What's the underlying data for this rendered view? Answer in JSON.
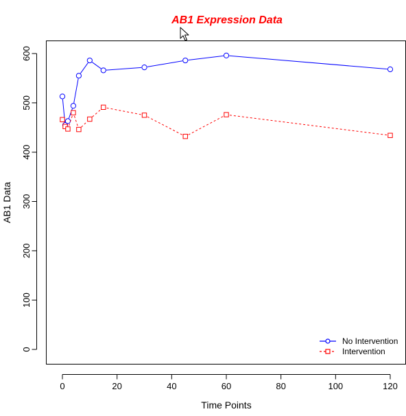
{
  "chart_data": {
    "type": "line",
    "title": "AB1 Expression Data",
    "title_color": "#ff0000",
    "xlabel": "Time Points",
    "ylabel": "AB1 Data",
    "xlim": [
      0,
      120
    ],
    "ylim": [
      0,
      600
    ],
    "x_ticks": [
      0,
      20,
      40,
      60,
      80,
      100,
      120
    ],
    "y_ticks": [
      0,
      100,
      200,
      300,
      400,
      500,
      600
    ],
    "grid": false,
    "legend_position": "bottom-right",
    "series": [
      {
        "name": "No Intervention",
        "color": "#0000ff",
        "line_style": "solid",
        "marker": "circle",
        "x": [
          0,
          1,
          2,
          4,
          6,
          10,
          15,
          30,
          45,
          60,
          120
        ],
        "y": [
          513,
          455,
          463,
          494,
          555,
          586,
          566,
          572,
          586,
          596,
          568
        ]
      },
      {
        "name": "Intervention",
        "color": "#ff0000",
        "line_style": "dashed",
        "marker": "square",
        "x": [
          0,
          1,
          2,
          4,
          6,
          10,
          15,
          30,
          45,
          60,
          120
        ],
        "y": [
          466,
          452,
          447,
          480,
          446,
          467,
          491,
          475,
          432,
          476,
          434
        ]
      }
    ]
  },
  "cursor": {
    "icon": "arrow-cursor-icon"
  }
}
